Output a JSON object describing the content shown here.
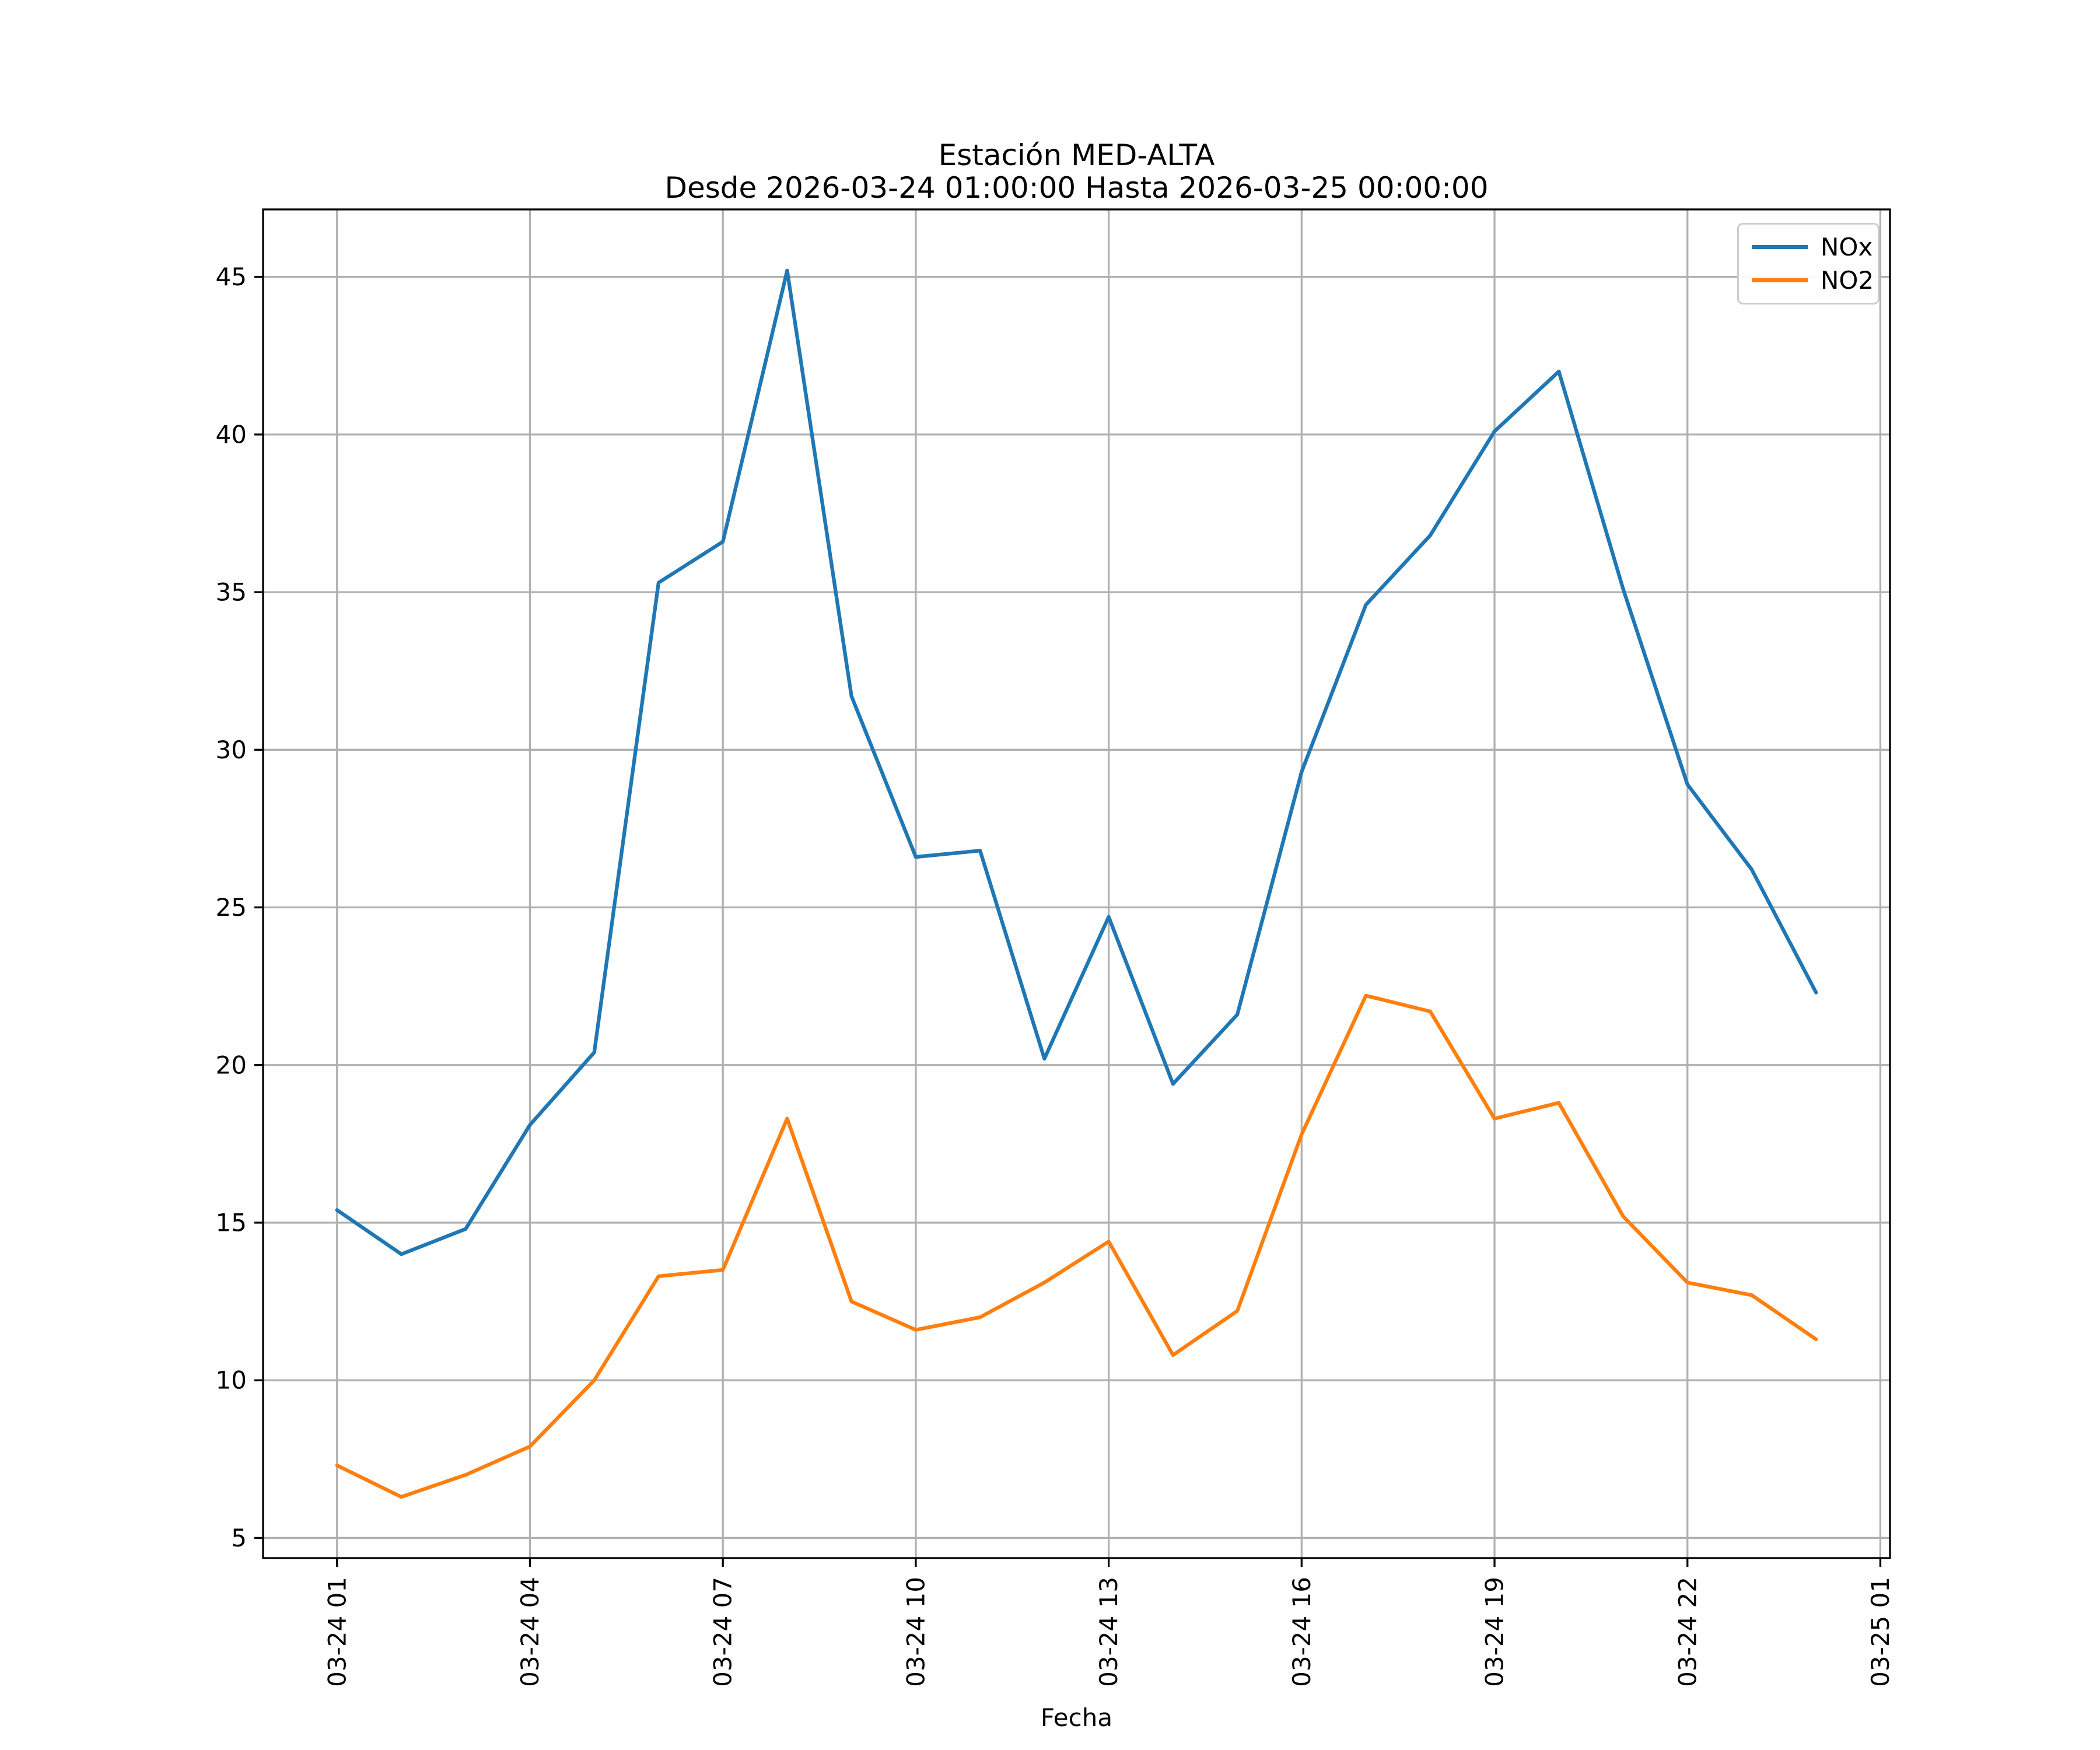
{
  "page": {
    "title_line1": "Estación MED-ALTA",
    "title_line2": "Desde 2026-03-24 01:00:00 Hasta 2026-03-25 00:00:00"
  },
  "axes": {
    "xlabel": "Fecha"
  },
  "legend": {
    "items": [
      {
        "label": "NOx",
        "color": "#1f77b4"
      },
      {
        "label": "NO2",
        "color": "#ff7f0e"
      }
    ],
    "position": "upper right"
  },
  "colors": {
    "nox": "#1f77b4",
    "no2": "#ff7f0e",
    "grid": "#b0b0b0",
    "spine": "#000000",
    "text": "#000000",
    "background": "#ffffff"
  },
  "chart_data": {
    "type": "line",
    "title": "Estación MED-ALTA",
    "subtitle": "Desde 2026-03-24 01:00:00 Hasta 2026-03-25 00:00:00",
    "xlabel": "Fecha",
    "ylabel": "",
    "grid": true,
    "legend_position": "upper right",
    "x_datetimes": [
      "2026-03-24 01:00",
      "2026-03-24 02:00",
      "2026-03-24 03:00",
      "2026-03-24 04:00",
      "2026-03-24 05:00",
      "2026-03-24 06:00",
      "2026-03-24 07:00",
      "2026-03-24 08:00",
      "2026-03-24 09:00",
      "2026-03-24 10:00",
      "2026-03-24 11:00",
      "2026-03-24 12:00",
      "2026-03-24 13:00",
      "2026-03-24 14:00",
      "2026-03-24 15:00",
      "2026-03-24 16:00",
      "2026-03-24 17:00",
      "2026-03-24 18:00",
      "2026-03-24 19:00",
      "2026-03-24 20:00",
      "2026-03-24 21:00",
      "2026-03-24 22:00",
      "2026-03-24 23:00",
      "2026-03-25 00:00"
    ],
    "x_hours": [
      1,
      2,
      3,
      4,
      5,
      6,
      7,
      8,
      9,
      10,
      11,
      12,
      13,
      14,
      15,
      16,
      17,
      18,
      19,
      20,
      21,
      22,
      23,
      24
    ],
    "series": [
      {
        "name": "NOx",
        "color": "#1f77b4",
        "values": [
          15.4,
          14.0,
          14.8,
          18.1,
          20.4,
          35.3,
          36.6,
          45.2,
          31.7,
          26.6,
          26.8,
          20.2,
          24.7,
          19.4,
          21.6,
          29.3,
          34.6,
          36.8,
          40.1,
          42.0,
          35.1,
          28.9,
          26.2,
          22.3
        ]
      },
      {
        "name": "NO2",
        "color": "#ff7f0e",
        "values": [
          7.3,
          6.3,
          7.0,
          7.9,
          10.0,
          13.3,
          13.5,
          18.3,
          12.5,
          11.6,
          12.0,
          13.1,
          14.4,
          10.8,
          12.2,
          17.8,
          22.2,
          21.7,
          18.3,
          18.8,
          15.2,
          13.1,
          12.7,
          11.3
        ]
      }
    ],
    "x_ticks": [
      {
        "hour": 1,
        "label": "03-24 01"
      },
      {
        "hour": 4,
        "label": "03-24 04"
      },
      {
        "hour": 7,
        "label": "03-24 07"
      },
      {
        "hour": 10,
        "label": "03-24 10"
      },
      {
        "hour": 13,
        "label": "03-24 13"
      },
      {
        "hour": 16,
        "label": "03-24 16"
      },
      {
        "hour": 19,
        "label": "03-24 19"
      },
      {
        "hour": 22,
        "label": "03-24 22"
      },
      {
        "hour": 25,
        "label": "03-25 01"
      }
    ],
    "y_ticks": [
      5,
      10,
      15,
      20,
      25,
      30,
      35,
      40,
      45
    ],
    "ylim": [
      4.36,
      47.14
    ],
    "xlim_hours": [
      -0.15,
      25.15
    ]
  }
}
